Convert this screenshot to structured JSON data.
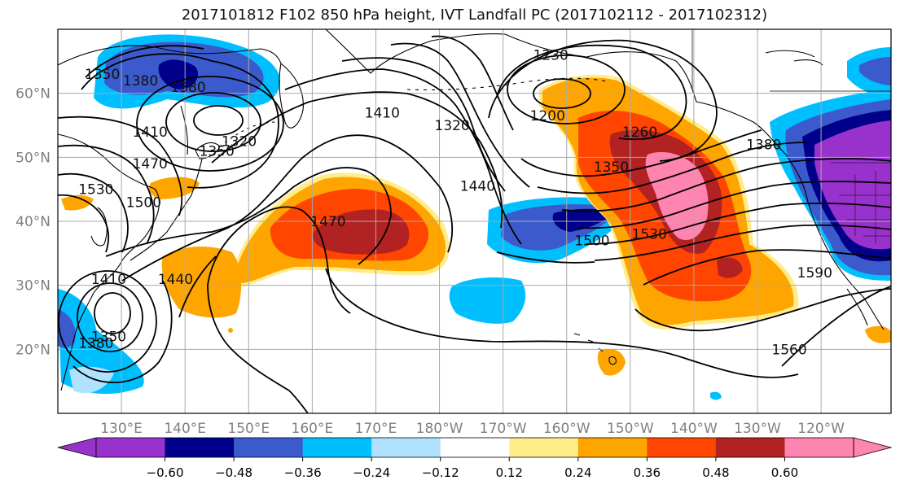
{
  "title": "2017101812 F102 850 hPa height, IVT Landfall PC (2017102112 - 2017102312)",
  "map": {
    "lon_range": [
      120,
      251
    ],
    "lat_range": [
      10,
      70
    ],
    "lon_grid": [
      130,
      140,
      150,
      160,
      170,
      180,
      190,
      200,
      210,
      220,
      230,
      240
    ],
    "lat_grid": [
      20,
      30,
      40,
      50,
      60
    ],
    "lon_labels": [
      "130°E",
      "140°E",
      "150°E",
      "160°E",
      "170°E",
      "180°W",
      "170°W",
      "160°W",
      "150°W",
      "140°W",
      "130°W",
      "120°W"
    ],
    "lat_labels": [
      "20°N",
      "30°N",
      "40°N",
      "50°N",
      "60°N"
    ],
    "grid": true,
    "tick_label_color": "#808080"
  },
  "contours": {
    "labels": [
      {
        "text": "1350",
        "lon": 127,
        "lat": 63
      },
      {
        "text": "1380",
        "lon": 133,
        "lat": 62
      },
      {
        "text": "1380",
        "lon": 140.5,
        "lat": 61
      },
      {
        "text": "1410",
        "lon": 134.5,
        "lat": 54
      },
      {
        "text": "1350",
        "lon": 145,
        "lat": 51
      },
      {
        "text": "1320",
        "lon": 148.5,
        "lat": 52.5
      },
      {
        "text": "1470",
        "lon": 134.5,
        "lat": 49
      },
      {
        "text": "1500",
        "lon": 133.5,
        "lat": 43
      },
      {
        "text": "1530",
        "lon": 126,
        "lat": 45
      },
      {
        "text": "1470",
        "lon": 162.5,
        "lat": 40
      },
      {
        "text": "1410",
        "lon": 171,
        "lat": 57
      },
      {
        "text": "1320",
        "lon": 182,
        "lat": 55
      },
      {
        "text": "1230",
        "lon": 197.5,
        "lat": 66
      },
      {
        "text": "1200",
        "lon": 197,
        "lat": 56.5
      },
      {
        "text": "1260",
        "lon": 211.5,
        "lat": 54
      },
      {
        "text": "1350",
        "lon": 207,
        "lat": 48.5
      },
      {
        "text": "1440",
        "lon": 186,
        "lat": 45.5
      },
      {
        "text": "1500",
        "lon": 204,
        "lat": 37
      },
      {
        "text": "1530",
        "lon": 213,
        "lat": 38
      },
      {
        "text": "1590",
        "lon": 239,
        "lat": 32
      },
      {
        "text": "1560",
        "lon": 235,
        "lat": 20
      },
      {
        "text": "1380",
        "lon": 231,
        "lat": 52
      },
      {
        "text": "1440",
        "lon": 138.5,
        "lat": 31
      },
      {
        "text": "1410",
        "lon": 128,
        "lat": 31
      },
      {
        "text": "1350",
        "lon": 128,
        "lat": 22
      },
      {
        "text": "1380",
        "lon": 126,
        "lat": 21
      }
    ]
  },
  "colorbar": {
    "ticks": [
      "−0.60",
      "−0.48",
      "−0.36",
      "−0.24",
      "−0.12",
      "0.12",
      "0.24",
      "0.36",
      "0.48",
      "0.60"
    ],
    "colors": [
      "#9932cc",
      "#00008b",
      "#3b5bcc",
      "#00bfff",
      "#b0e2ff",
      "#ffffff",
      "#ffec8b",
      "#ffa500",
      "#ff4500",
      "#b22222",
      "#ff85b0"
    ]
  },
  "shading_colors": {
    "neg4": "#9932cc",
    "neg3": "#00008b",
    "neg2": "#3b5bcc",
    "neg1": "#00bfff",
    "neg0": "#b0e2ff",
    "pos0": "#ffec8b",
    "pos1": "#ffa500",
    "pos2": "#ff4500",
    "pos3": "#b22222",
    "pos4": "#ff85b0"
  }
}
